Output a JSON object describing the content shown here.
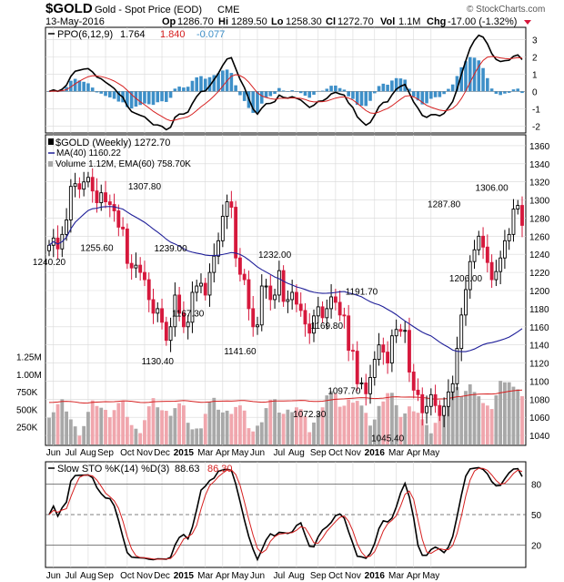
{
  "header": {
    "symbol": "$GOLD",
    "name": "Gold - Spot Price (EOD)",
    "exchange": "CME",
    "watermark": "© StockCharts.com",
    "date": "13-May-2016",
    "op_label": "Op",
    "op": "1286.70",
    "hi_label": "Hi",
    "hi": "1289.50",
    "lo_label": "Lo",
    "lo": "1258.30",
    "cl_label": "Cl",
    "cl": "1272.70",
    "vol_label": "Vol",
    "vol": "1.1M",
    "chg_label": "Chg",
    "chg": "-17.00 (-1.32%)"
  },
  "ppo_legend": {
    "label": "PPO(6,12,9)",
    "v1": "1.764",
    "v2": "1.840",
    "v3": "-0.077"
  },
  "price_legend": {
    "title": "$GOLD (Weekly) 1272.70",
    "ma": "MA(40) 1160.22",
    "volume": "Volume 1.12M, EMA(60) 758.70K"
  },
  "sto_legend": {
    "label": "Slow STO %K(14) %D(3)",
    "v1": "88.63",
    "v2": "86.30"
  },
  "colors": {
    "up": "#000000",
    "down": "#d6183c",
    "ma": "#1f1f99",
    "hist": "#3d8fc8",
    "signal": "#d62020",
    "vol_up": "#a8a8a8",
    "vol_down": "#f0a6ad",
    "vol_ema": "#d62020"
  },
  "chart_data": [
    {
      "type": "candlestick",
      "title": "$GOLD (Weekly) 1272.70",
      "yaxis": {
        "min": 1030,
        "max": 1370,
        "ticks": [
          1040,
          1060,
          1080,
          1100,
          1120,
          1140,
          1160,
          1180,
          1200,
          1220,
          1240,
          1260,
          1280,
          1300,
          1320,
          1340,
          1360
        ]
      },
      "x_labels": [
        "Jun",
        "Jul",
        "Aug",
        "Sep",
        "Oct",
        "Nov",
        "Dec",
        "2015",
        "Mar",
        "Apr",
        "May",
        "Jun",
        "Jul",
        "Aug",
        "Sep",
        "Oct",
        "Nov",
        "2016",
        "Mar",
        "Apr",
        "May"
      ],
      "x_label_weeks": [
        1,
        5,
        9,
        13,
        18,
        22,
        26,
        31,
        36,
        40,
        44,
        48,
        53,
        57,
        62,
        66,
        70,
        75,
        80,
        84,
        88
      ],
      "series_close": [
        1250,
        1258,
        1246,
        1262,
        1278,
        1315,
        1318,
        1312,
        1320,
        1325,
        1310,
        1297,
        1308,
        1298,
        1295,
        1288,
        1270,
        1268,
        1230,
        1225,
        1228,
        1220,
        1212,
        1190,
        1175,
        1180,
        1165,
        1145,
        1160,
        1195,
        1175,
        1160,
        1165,
        1198,
        1205,
        1208,
        1195,
        1220,
        1238,
        1255,
        1282,
        1298,
        1292,
        1236,
        1218,
        1212,
        1180,
        1160,
        1162,
        1205,
        1205,
        1190,
        1195,
        1222,
        1188,
        1190,
        1198,
        1185,
        1178,
        1163,
        1153,
        1172,
        1182,
        1170,
        1180,
        1193,
        1187,
        1173,
        1172,
        1134,
        1133,
        1097,
        1098,
        1086,
        1104,
        1124,
        1140,
        1132,
        1120,
        1150,
        1157,
        1155,
        1156,
        1110,
        1090,
        1085,
        1065,
        1072,
        1085,
        1073,
        1062,
        1072,
        1088,
        1097,
        1136,
        1173,
        1201,
        1232,
        1245,
        1260,
        1248,
        1231,
        1212,
        1221,
        1236,
        1255,
        1262,
        1290,
        1294,
        1272
      ],
      "annotations": [
        {
          "text": "1240.20",
          "week": 0
        },
        {
          "text": "1255.60",
          "week": 11
        },
        {
          "text": "1307.80",
          "week": 22
        },
        {
          "text": "1239.00",
          "week": 28
        },
        {
          "text": "1130.40",
          "week": 25
        },
        {
          "text": "1167.30",
          "week": 32
        },
        {
          "text": "1141.60",
          "week": 44
        },
        {
          "text": "1232.00",
          "week": 52
        },
        {
          "text": "1169.80",
          "week": 64
        },
        {
          "text": "1191.70",
          "week": 72
        },
        {
          "text": "1072.30",
          "week": 60
        },
        {
          "text": "1097.70",
          "week": 68
        },
        {
          "text": "1045.40",
          "week": 78
        },
        {
          "text": "1287.80",
          "week": 91
        },
        {
          "text": "1206.00",
          "week": 96
        },
        {
          "text": "1306.00",
          "week": 102
        }
      ],
      "ma_label": "MA(40) 1160.22"
    },
    {
      "type": "bar",
      "title": "Volume 1.12M, EMA(60) 758.70K",
      "yaxis_labels": [
        "250K",
        "500K",
        "750K",
        "1.00M",
        "1.25M"
      ],
      "yaxis_values": [
        250,
        500,
        750,
        1000,
        1250
      ],
      "unit": "K"
    },
    {
      "type": "line",
      "title": "PPO(6,12,9)",
      "yaxis": {
        "min": -2.3,
        "max": 3.6,
        "ticks": [
          -2,
          -1,
          0,
          1,
          2,
          3
        ]
      }
    },
    {
      "type": "line",
      "title": "Slow STO %K(14) %D(3)",
      "yaxis": {
        "min": 0,
        "max": 100,
        "ticks": [
          20,
          50,
          80
        ]
      }
    }
  ]
}
